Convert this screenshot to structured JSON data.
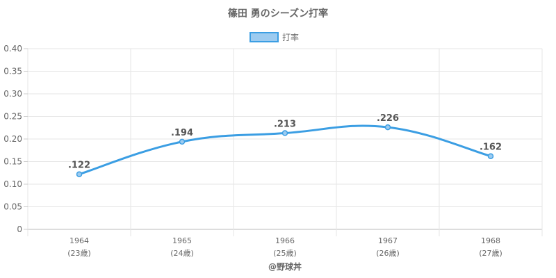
{
  "chart_data": {
    "type": "line",
    "title": "篠田 勇のシーズン打率",
    "legend": {
      "position": "top",
      "label": "打率"
    },
    "categories": [
      "1964",
      "1965",
      "1966",
      "1967",
      "1968"
    ],
    "category_sublabels": [
      "(23歳)",
      "(24歳)",
      "(25歳)",
      "(26歳)",
      "(27歳)"
    ],
    "series": [
      {
        "name": "打率",
        "values": [
          0.122,
          0.194,
          0.213,
          0.226,
          0.162
        ],
        "data_labels": [
          ".122",
          ".194",
          ".213",
          ".226",
          ".162"
        ],
        "color": "#3b9ee3",
        "fill": "#9ccbf0"
      }
    ],
    "ylim": [
      0,
      0.4
    ],
    "yticks": [
      "0",
      "0.05",
      "0.10",
      "0.15",
      "0.20",
      "0.25",
      "0.30",
      "0.35",
      "0.40"
    ],
    "grid": true,
    "credit": "@野球丼"
  }
}
